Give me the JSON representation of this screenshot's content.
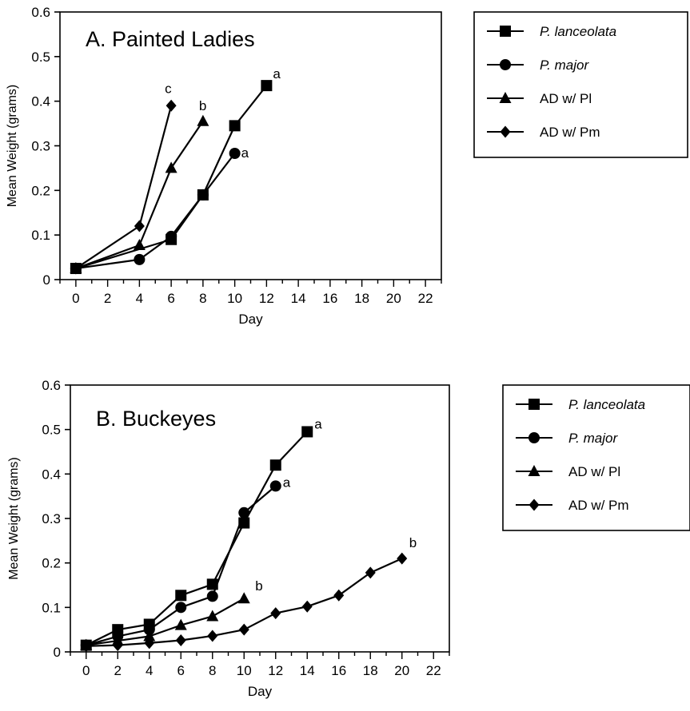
{
  "chart_data": [
    {
      "type": "line",
      "title": "A. Painted Ladies",
      "xlabel": "Day",
      "ylabel": "Mean Weight (grams)",
      "xlim": [
        -1,
        23
      ],
      "ylim": [
        0,
        0.6
      ],
      "x_ticks": [
        "0",
        "2",
        "4",
        "6",
        "8",
        "10",
        "12",
        "14",
        "16",
        "18",
        "20",
        "22"
      ],
      "y_ticks": [
        "0",
        "0.1",
        "0.2",
        "0.3",
        "0.4",
        "0.5",
        "0.6"
      ],
      "legend_position": "right",
      "series": [
        {
          "name": "P. lanceolata",
          "italic": true,
          "marker": "square",
          "points": [
            [
              0,
              0.025
            ],
            [
              6,
              0.09
            ],
            [
              8,
              0.19
            ],
            [
              10,
              0.345
            ],
            [
              12,
              0.435
            ]
          ],
          "letter": "a"
        },
        {
          "name": "P. major",
          "italic": true,
          "marker": "circle",
          "points": [
            [
              0,
              0.025
            ],
            [
              4,
              0.045
            ],
            [
              6,
              0.097
            ],
            [
              8,
              0.19
            ],
            [
              10,
              0.283
            ]
          ],
          "letter": "a"
        },
        {
          "name": "AD w/ Pl",
          "italic": false,
          "marker": "triangle",
          "points": [
            [
              0,
              0.025
            ],
            [
              4,
              0.077
            ],
            [
              6,
              0.25
            ],
            [
              8,
              0.355
            ]
          ],
          "letter": "b"
        },
        {
          "name": "AD w/ Pm",
          "italic": false,
          "marker": "diamond",
          "points": [
            [
              0,
              0.025
            ],
            [
              4,
              0.12
            ],
            [
              6,
              0.39
            ]
          ],
          "letter": "c"
        }
      ]
    },
    {
      "type": "line",
      "title": "B. Buckeyes",
      "xlabel": "Day",
      "ylabel": "Mean Weight (grams)",
      "xlim": [
        -1,
        23
      ],
      "ylim": [
        0,
        0.6
      ],
      "x_ticks": [
        "0",
        "2",
        "4",
        "6",
        "8",
        "10",
        "12",
        "14",
        "16",
        "18",
        "20",
        "22"
      ],
      "y_ticks": [
        "0",
        "0.1",
        "0.2",
        "0.3",
        "0.4",
        "0.5",
        "0.6"
      ],
      "legend_position": "right",
      "series": [
        {
          "name": "P. lanceolata",
          "italic": true,
          "marker": "square",
          "points": [
            [
              0,
              0.015
            ],
            [
              2,
              0.05
            ],
            [
              4,
              0.062
            ],
            [
              6,
              0.127
            ],
            [
              8,
              0.152
            ],
            [
              10,
              0.29
            ],
            [
              12,
              0.42
            ],
            [
              14,
              0.495
            ]
          ],
          "letter": "a"
        },
        {
          "name": "P. major",
          "italic": true,
          "marker": "circle",
          "points": [
            [
              0,
              0.015
            ],
            [
              2,
              0.035
            ],
            [
              4,
              0.05
            ],
            [
              6,
              0.1
            ],
            [
              8,
              0.125
            ],
            [
              10,
              0.313
            ],
            [
              12,
              0.373
            ]
          ],
          "letter": "a"
        },
        {
          "name": "AD w/ Pl",
          "italic": false,
          "marker": "triangle",
          "points": [
            [
              0,
              0.015
            ],
            [
              2,
              0.025
            ],
            [
              4,
              0.035
            ],
            [
              6,
              0.06
            ],
            [
              8,
              0.08
            ],
            [
              10,
              0.12
            ]
          ],
          "letter": "b"
        },
        {
          "name": "AD w/ Pm",
          "italic": false,
          "marker": "diamond",
          "points": [
            [
              0,
              0.013
            ],
            [
              2,
              0.015
            ],
            [
              4,
              0.02
            ],
            [
              6,
              0.026
            ],
            [
              8,
              0.036
            ],
            [
              10,
              0.05
            ],
            [
              12,
              0.087
            ],
            [
              14,
              0.102
            ],
            [
              16,
              0.127
            ],
            [
              18,
              0.178
            ],
            [
              20,
              0.21
            ]
          ],
          "letter": "b"
        }
      ]
    }
  ]
}
